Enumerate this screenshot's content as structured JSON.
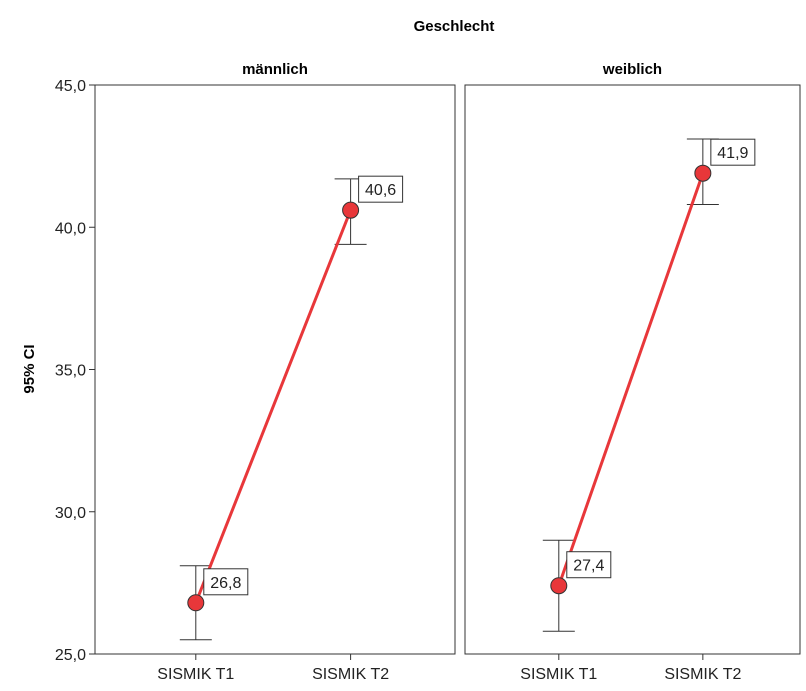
{
  "chart_data": {
    "type": "line",
    "title": "Geschlecht",
    "ylabel": "95% CI",
    "ylim": [
      25,
      45
    ],
    "yticks": [
      "25,0",
      "30,0",
      "35,0",
      "40,0",
      "45,0"
    ],
    "ytick_values": [
      25,
      30,
      35,
      40,
      45
    ],
    "categories": [
      "SISMIK T1",
      "SISMIK T2"
    ],
    "grid": false,
    "colors": {
      "line": "#e8373a",
      "marker": "#e8373a",
      "errorbar": "#333333",
      "frame": "#333333"
    },
    "panels": [
      {
        "label": "männlich",
        "values": [
          26.8,
          40.6
        ],
        "value_labels": [
          "26,8",
          "40,6"
        ],
        "ci_lower": [
          25.5,
          39.4
        ],
        "ci_upper": [
          28.1,
          41.7
        ]
      },
      {
        "label": "weiblich",
        "values": [
          27.4,
          41.9
        ],
        "value_labels": [
          "27,4",
          "41,9"
        ],
        "ci_lower": [
          25.8,
          40.8
        ],
        "ci_upper": [
          29.0,
          43.1
        ]
      }
    ]
  }
}
